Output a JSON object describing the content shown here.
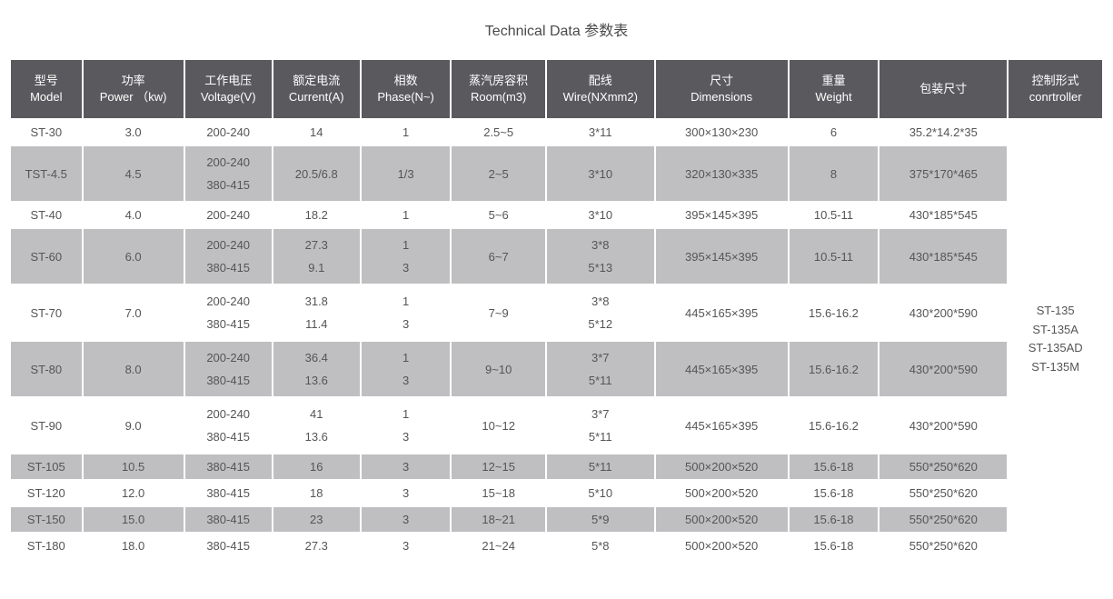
{
  "title": "Technical Data 参数表",
  "colors": {
    "header_bg": "#5a5a5e",
    "header_fg": "#ffffff",
    "band_grey": "#bfbfc1",
    "band_white": "#ffffff",
    "text": "#555555"
  },
  "typography": {
    "title_fontsize": 16,
    "header_fontsize": 13,
    "cell_fontsize": 13
  },
  "columns": [
    {
      "zh": "型号",
      "en": "Model"
    },
    {
      "zh": "功率",
      "en": "Power （kw)"
    },
    {
      "zh": "工作电压",
      "en": "Voltage(V)"
    },
    {
      "zh": "额定电流",
      "en": "Current(A)"
    },
    {
      "zh": "相数",
      "en": "Phase(N~)"
    },
    {
      "zh": "蒸汽房容积",
      "en": "Room(m3)"
    },
    {
      "zh": "配线",
      "en": "Wire(NXmm2)"
    },
    {
      "zh": "尺寸",
      "en": "Dimensions"
    },
    {
      "zh": "重量",
      "en": "Weight"
    },
    {
      "zh": "包装尺寸",
      "en": ""
    },
    {
      "zh": "控制形式",
      "en": "conrtroller"
    }
  ],
  "controller": [
    "ST-135",
    "ST-135A",
    "ST-135AD",
    "ST-135M"
  ],
  "rows": [
    {
      "band": "w",
      "model": "ST-30",
      "power": "3.0",
      "volt": [
        "200-240"
      ],
      "curr": [
        "14"
      ],
      "phase": [
        "1"
      ],
      "room": "2.5~5",
      "wire": [
        "3*11"
      ],
      "dim": "300×130×230",
      "wt": "6",
      "pack": "35.2*14.2*35"
    },
    {
      "band": "g",
      "model": "TST-4.5",
      "power": "4.5",
      "volt": [
        "200-240",
        "380-415"
      ],
      "curr": [
        "20.5/6.8"
      ],
      "phase": [
        "1/3"
      ],
      "room": "2~5",
      "wire": [
        "3*10"
      ],
      "dim": "320×130×335",
      "wt": "8",
      "pack": "375*170*465"
    },
    {
      "band": "w",
      "model": "ST-40",
      "power": "4.0",
      "volt": [
        "200-240"
      ],
      "curr": [
        "18.2"
      ],
      "phase": [
        "1"
      ],
      "room": "5~6",
      "wire": [
        "3*10"
      ],
      "dim": "395×145×395",
      "wt": "10.5-11",
      "pack": "430*185*545"
    },
    {
      "band": "g",
      "model": "ST-60",
      "power": "6.0",
      "volt": [
        "200-240",
        "380-415"
      ],
      "curr": [
        "27.3",
        "9.1"
      ],
      "phase": [
        "1",
        "3"
      ],
      "room": "6~7",
      "wire": [
        "3*8",
        "5*13"
      ],
      "dim": "395×145×395",
      "wt": "10.5-11",
      "pack": "430*185*545"
    },
    {
      "band": "w",
      "model": "ST-70",
      "power": "7.0",
      "volt": [
        "200-240",
        "380-415"
      ],
      "curr": [
        "31.8",
        "11.4"
      ],
      "phase": [
        "1",
        "3"
      ],
      "room": "7~9",
      "wire": [
        "3*8",
        "5*12"
      ],
      "dim": "445×165×395",
      "wt": "15.6-16.2",
      "pack": "430*200*590"
    },
    {
      "band": "g",
      "model": "ST-80",
      "power": "8.0",
      "volt": [
        "200-240",
        "380-415"
      ],
      "curr": [
        "36.4",
        "13.6"
      ],
      "phase": [
        "1",
        "3"
      ],
      "room": "9~10",
      "wire": [
        "3*7",
        "5*11"
      ],
      "dim": "445×165×395",
      "wt": "15.6-16.2",
      "pack": "430*200*590"
    },
    {
      "band": "w",
      "model": "ST-90",
      "power": "9.0",
      "volt": [
        "200-240",
        "380-415"
      ],
      "curr": [
        "41",
        "13.6"
      ],
      "phase": [
        "1",
        "3"
      ],
      "room": "10~12",
      "wire": [
        "3*7",
        "5*11"
      ],
      "dim": "445×165×395",
      "wt": "15.6-16.2",
      "pack": "430*200*590"
    },
    {
      "band": "g",
      "model": "ST-105",
      "power": "10.5",
      "volt": [
        "380-415"
      ],
      "curr": [
        "16"
      ],
      "phase": [
        "3"
      ],
      "room": "12~15",
      "wire": [
        "5*11"
      ],
      "dim": "500×200×520",
      "wt": "15.6-18",
      "pack": "550*250*620"
    },
    {
      "band": "w",
      "model": "ST-120",
      "power": "12.0",
      "volt": [
        "380-415"
      ],
      "curr": [
        "18"
      ],
      "phase": [
        "3"
      ],
      "room": "15~18",
      "wire": [
        "5*10"
      ],
      "dim": "500×200×520",
      "wt": "15.6-18",
      "pack": "550*250*620"
    },
    {
      "band": "g",
      "model": "ST-150",
      "power": "15.0",
      "volt": [
        "380-415"
      ],
      "curr": [
        "23"
      ],
      "phase": [
        "3"
      ],
      "room": "18~21",
      "wire": [
        "5*9"
      ],
      "dim": "500×200×520",
      "wt": "15.6-18",
      "pack": "550*250*620"
    },
    {
      "band": "w",
      "model": "ST-180",
      "power": "18.0",
      "volt": [
        "380-415"
      ],
      "curr": [
        "27.3"
      ],
      "phase": [
        "3"
      ],
      "room": "21~24",
      "wire": [
        "5*8"
      ],
      "dim": "500×200×520",
      "wt": "15.6-18",
      "pack": "550*250*620"
    }
  ]
}
